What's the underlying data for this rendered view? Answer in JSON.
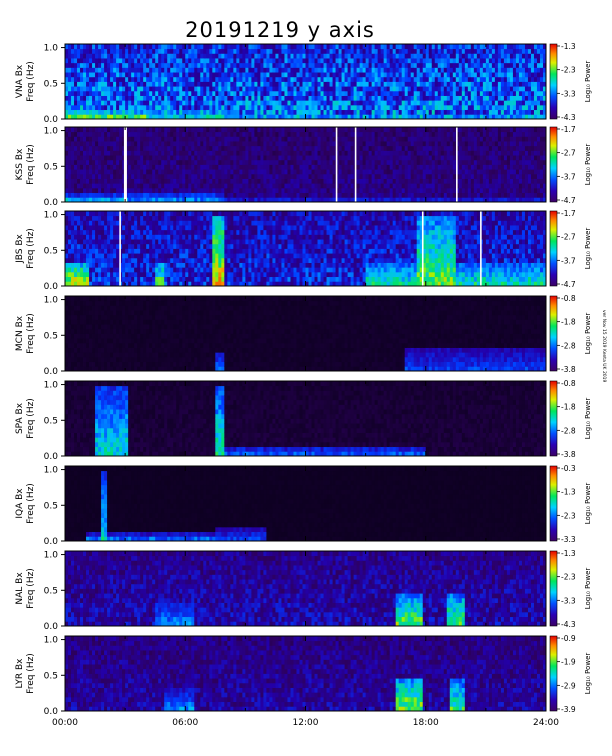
{
  "chart_data": {
    "type": "heatmap",
    "title": "20191219  y  axis",
    "side_note": "ver Nov 15 2019 Kenta UK 2019",
    "x_axis": {
      "ticks": [
        "00:00",
        "06:00",
        "12:00",
        "18:00",
        "24:00"
      ],
      "range_hours": [
        0,
        24
      ]
    },
    "y_tick_labels": [
      "0.0",
      "0.5",
      "1.0"
    ],
    "y_range_hz": [
      0,
      1.05
    ],
    "colorbar_label": "Log₁₀ Power",
    "panels": [
      {
        "station": "VNA Bx",
        "ylabel_line1": "VNA Bx",
        "ylabel_line2": "Freq (Hz)",
        "colorbar_ticks": [
          "-1.3",
          "-2.3",
          "-3.3",
          "-4.3"
        ],
        "background_level": 0.4,
        "white_gap_hours": [],
        "bright_events": [
          {
            "t_start": 0.0,
            "t_end": 4.2,
            "max_freq": 0.12,
            "level": 0.75
          },
          {
            "t_start": 4.2,
            "t_end": 8.0,
            "max_freq": 0.12,
            "level": 0.6
          },
          {
            "t_start": 8.0,
            "t_end": 24.0,
            "max_freq": 0.05,
            "level": 0.55
          }
        ]
      },
      {
        "station": "KSS Bx",
        "ylabel_line1": "KSS Bx",
        "ylabel_line2": "Freq (Hz)",
        "colorbar_ticks": [
          "-1.7",
          "-2.7",
          "-3.7",
          "-4.7"
        ],
        "background_level": 0.16,
        "white_gap_hours": [
          2.98,
          3.05,
          13.55,
          14.5,
          19.55
        ],
        "bright_events": [
          {
            "t_start": 0.0,
            "t_end": 3.0,
            "max_freq": 0.1,
            "level": 0.55
          },
          {
            "t_start": 3.0,
            "t_end": 8.0,
            "max_freq": 0.15,
            "level": 0.45
          },
          {
            "t_start": 8.0,
            "t_end": 24.0,
            "max_freq": 0.06,
            "level": 0.35
          }
        ]
      },
      {
        "station": "JBS Bx",
        "ylabel_line1": "JBS Bx",
        "ylabel_line2": "Freq (Hz)",
        "colorbar_ticks": [
          "-1.7",
          "-2.7",
          "-3.7",
          "-4.7"
        ],
        "background_level": 0.3,
        "white_gap_hours": [
          2.75,
          17.85,
          20.75
        ],
        "bright_events": [
          {
            "t_start": 0.0,
            "t_end": 1.2,
            "max_freq": 0.35,
            "level": 0.8
          },
          {
            "t_start": 4.5,
            "t_end": 5.0,
            "max_freq": 0.35,
            "level": 0.7
          },
          {
            "t_start": 7.3,
            "t_end": 7.9,
            "max_freq": 1.0,
            "level": 0.85
          },
          {
            "t_start": 15.0,
            "t_end": 24.0,
            "max_freq": 0.35,
            "level": 0.6
          },
          {
            "t_start": 17.5,
            "t_end": 19.5,
            "max_freq": 1.0,
            "level": 0.7
          }
        ]
      },
      {
        "station": "MCN Bx",
        "ylabel_line1": "MCN Bx",
        "ylabel_line2": "Freq (Hz)",
        "colorbar_ticks": [
          "-0.8",
          "-1.8",
          "-2.8",
          "-3.8"
        ],
        "background_level": 0.02,
        "white_gap_hours": [],
        "bright_events": [
          {
            "t_start": 7.5,
            "t_end": 7.9,
            "max_freq": 0.25,
            "level": 0.45
          },
          {
            "t_start": 17.0,
            "t_end": 24.0,
            "max_freq": 0.35,
            "level": 0.35
          }
        ]
      },
      {
        "station": "SPA Bx",
        "ylabel_line1": "SPA Bx",
        "ylabel_line2": "Freq (Hz)",
        "colorbar_ticks": [
          "-0.8",
          "-1.8",
          "-2.8",
          "-3.8"
        ],
        "background_level": 0.04,
        "white_gap_hours": [],
        "bright_events": [
          {
            "t_start": 1.5,
            "t_end": 3.2,
            "max_freq": 1.0,
            "level": 0.55
          },
          {
            "t_start": 7.5,
            "t_end": 8.0,
            "max_freq": 1.0,
            "level": 0.6
          },
          {
            "t_start": 8.0,
            "t_end": 18.0,
            "max_freq": 0.15,
            "level": 0.4
          }
        ]
      },
      {
        "station": "IQA Bx",
        "ylabel_line1": "IQA Bx",
        "ylabel_line2": "Freq (Hz)",
        "colorbar_ticks": [
          "-0.3",
          "-1.3",
          "-2.3",
          "-3.3"
        ],
        "background_level": 0.01,
        "white_gap_hours": [],
        "bright_events": [
          {
            "t_start": 1.8,
            "t_end": 2.1,
            "max_freq": 1.0,
            "level": 0.55
          },
          {
            "t_start": 1.0,
            "t_end": 8.0,
            "max_freq": 0.1,
            "level": 0.45
          },
          {
            "t_start": 7.5,
            "t_end": 10.0,
            "max_freq": 0.2,
            "level": 0.35
          }
        ]
      },
      {
        "station": "NAL Bx",
        "ylabel_line1": "NAL Bx",
        "ylabel_line2": "Freq (Hz)",
        "colorbar_ticks": [
          "-1.3",
          "-2.3",
          "-3.3",
          "-4.3"
        ],
        "background_level": 0.22,
        "white_gap_hours": [],
        "bright_events": [
          {
            "t_start": 4.5,
            "t_end": 6.5,
            "max_freq": 0.35,
            "level": 0.45
          },
          {
            "t_start": 16.5,
            "t_end": 17.8,
            "max_freq": 0.45,
            "level": 0.7
          },
          {
            "t_start": 19.0,
            "t_end": 20.0,
            "max_freq": 0.45,
            "level": 0.7
          }
        ]
      },
      {
        "station": "LYR Bx",
        "ylabel_line1": "LYR Bx",
        "ylabel_line2": "Freq (Hz)",
        "colorbar_ticks": [
          "-0.9",
          "-1.9",
          "-2.9",
          "-3.9"
        ],
        "background_level": 0.2,
        "white_gap_hours": [],
        "bright_events": [
          {
            "t_start": 5.0,
            "t_end": 6.5,
            "max_freq": 0.3,
            "level": 0.45
          },
          {
            "t_start": 16.5,
            "t_end": 17.8,
            "max_freq": 0.45,
            "level": 0.75
          },
          {
            "t_start": 19.2,
            "t_end": 20.0,
            "max_freq": 0.45,
            "level": 0.65
          }
        ]
      }
    ]
  }
}
